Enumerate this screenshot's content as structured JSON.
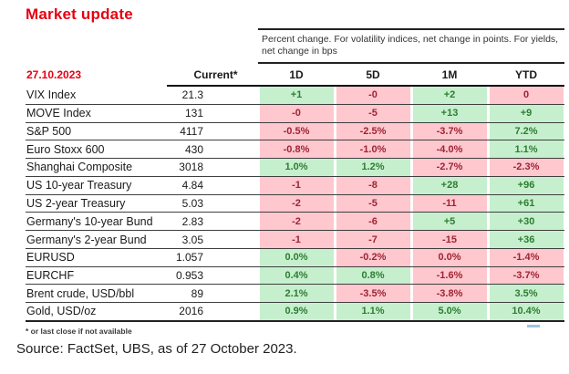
{
  "title": "Market update",
  "note": "Percent change. For volatility indices, net change in points. For yields,  net change in bps",
  "date_label": "27.10.2023",
  "columns": {
    "current": "Current*",
    "d1": "1D",
    "d5": "5D",
    "m1": "1M",
    "ytd": "YTD"
  },
  "colors": {
    "accent_red": "#e60012",
    "positive_bg": "#c6efce",
    "positive_text": "#2e7d32",
    "negative_bg": "#ffc7ce",
    "negative_text": "#9c2433"
  },
  "rows": [
    {
      "label": "VIX Index",
      "current": "21.3",
      "cells": [
        {
          "v": "+1",
          "s": "pos"
        },
        {
          "v": "-0",
          "s": "neg"
        },
        {
          "v": "+2",
          "s": "pos"
        },
        {
          "v": "0",
          "s": "neg"
        }
      ]
    },
    {
      "label": "MOVE Index",
      "current": "131",
      "cells": [
        {
          "v": "-0",
          "s": "neg"
        },
        {
          "v": "-5",
          "s": "neg"
        },
        {
          "v": "+13",
          "s": "pos"
        },
        {
          "v": "+9",
          "s": "pos"
        }
      ]
    },
    {
      "label": "S&P 500",
      "current": "4117",
      "cells": [
        {
          "v": "-0.5%",
          "s": "neg"
        },
        {
          "v": "-2.5%",
          "s": "neg"
        },
        {
          "v": "-3.7%",
          "s": "neg"
        },
        {
          "v": "7.2%",
          "s": "pos"
        }
      ]
    },
    {
      "label": "Euro Stoxx 600",
      "current": "430",
      "cells": [
        {
          "v": "-0.8%",
          "s": "neg"
        },
        {
          "v": "-1.0%",
          "s": "neg"
        },
        {
          "v": "-4.0%",
          "s": "neg"
        },
        {
          "v": "1.1%",
          "s": "pos"
        }
      ]
    },
    {
      "label": "Shanghai Composite",
      "current": "3018",
      "cells": [
        {
          "v": "1.0%",
          "s": "pos"
        },
        {
          "v": "1.2%",
          "s": "pos"
        },
        {
          "v": "-2.7%",
          "s": "neg"
        },
        {
          "v": "-2.3%",
          "s": "neg"
        }
      ]
    },
    {
      "label": "US 10-year Treasury",
      "current": "4.84",
      "cells": [
        {
          "v": "-1",
          "s": "neg"
        },
        {
          "v": "-8",
          "s": "neg"
        },
        {
          "v": "+28",
          "s": "pos"
        },
        {
          "v": "+96",
          "s": "pos"
        }
      ]
    },
    {
      "label": "US 2-year Treasury",
      "current": "5.03",
      "cells": [
        {
          "v": "-2",
          "s": "neg"
        },
        {
          "v": "-5",
          "s": "neg"
        },
        {
          "v": "-11",
          "s": "neg"
        },
        {
          "v": "+61",
          "s": "pos"
        }
      ]
    },
    {
      "label": "Germany's 10-year Bund",
      "current": "2.83",
      "cells": [
        {
          "v": "-2",
          "s": "neg"
        },
        {
          "v": "-6",
          "s": "neg"
        },
        {
          "v": "+5",
          "s": "pos"
        },
        {
          "v": "+30",
          "s": "pos"
        }
      ]
    },
    {
      "label": "Germany's 2-year Bund",
      "current": "3.05",
      "cells": [
        {
          "v": "-1",
          "s": "neg"
        },
        {
          "v": "-7",
          "s": "neg"
        },
        {
          "v": "-15",
          "s": "neg"
        },
        {
          "v": "+36",
          "s": "pos"
        }
      ]
    },
    {
      "label": "EURUSD",
      "current": "1.057",
      "cells": [
        {
          "v": "0.0%",
          "s": "pos"
        },
        {
          "v": "-0.2%",
          "s": "neg"
        },
        {
          "v": "0.0%",
          "s": "neg"
        },
        {
          "v": "-1.4%",
          "s": "neg"
        }
      ]
    },
    {
      "label": "EURCHF",
      "current": "0.953",
      "cells": [
        {
          "v": "0.4%",
          "s": "pos"
        },
        {
          "v": "0.8%",
          "s": "pos"
        },
        {
          "v": "-1.6%",
          "s": "neg"
        },
        {
          "v": "-3.7%",
          "s": "neg"
        }
      ]
    },
    {
      "label": "Brent crude, USD/bbl",
      "current": "89",
      "cells": [
        {
          "v": "2.1%",
          "s": "pos"
        },
        {
          "v": "-3.5%",
          "s": "neg"
        },
        {
          "v": "-3.8%",
          "s": "neg"
        },
        {
          "v": "3.5%",
          "s": "pos"
        }
      ]
    },
    {
      "label": "Gold,  USD/oz",
      "current": "2016",
      "cells": [
        {
          "v": "0.9%",
          "s": "pos"
        },
        {
          "v": "1.1%",
          "s": "pos"
        },
        {
          "v": "5.0%",
          "s": "pos"
        },
        {
          "v": "10.4%",
          "s": "pos"
        }
      ]
    }
  ],
  "footnote": "* or last close if not available",
  "source": "Source: FactSet, UBS, as of 27 October 2023."
}
